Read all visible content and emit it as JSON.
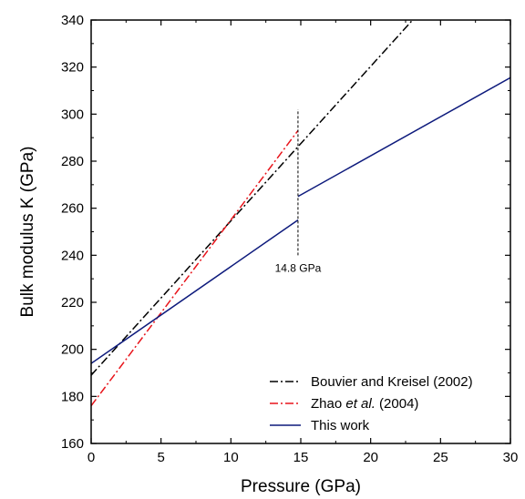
{
  "chart_data": {
    "type": "line",
    "xlabel": "Pressure (GPa)",
    "ylabel": "Bulk modulus K (GPa)",
    "xlim": [
      0,
      30
    ],
    "ylim": [
      160,
      340
    ],
    "x_ticks": [
      0,
      5,
      10,
      15,
      20,
      25,
      30
    ],
    "y_ticks": [
      160,
      180,
      200,
      220,
      240,
      260,
      280,
      300,
      320,
      340
    ],
    "grid": false,
    "legend_position": "bottom-right",
    "series": [
      {
        "name": "Bouvier and Kreisel (2002)",
        "name_parts": [
          {
            "text": "Bouvier and Kreisel (2002)",
            "italic": false
          }
        ],
        "color": "#000000",
        "dash": "dash-dot",
        "points": [
          [
            0,
            189
          ],
          [
            23,
            340
          ]
        ]
      },
      {
        "name": "Zhao et al. (2004)",
        "name_parts": [
          {
            "text": "Zhao ",
            "italic": false
          },
          {
            "text": "et al.",
            "italic": true
          },
          {
            "text": " (2004)",
            "italic": false
          }
        ],
        "color": "#e8141b",
        "dash": "dash-dot",
        "points": [
          [
            0,
            176
          ],
          [
            14.8,
            293
          ]
        ]
      },
      {
        "name": "This work",
        "name_parts": [
          {
            "text": "This work",
            "italic": false
          }
        ],
        "color": "#0d1a7c",
        "dash": "solid",
        "segments": [
          [
            [
              0,
              194
            ],
            [
              14.8,
              255
            ]
          ],
          [
            [
              14.8,
              265
            ],
            [
              30,
              315.5
            ]
          ]
        ]
      }
    ],
    "annotations": [
      {
        "text": "14.8 GPa",
        "x": 14.8,
        "y_from": 240,
        "y_to": 302
      }
    ]
  }
}
